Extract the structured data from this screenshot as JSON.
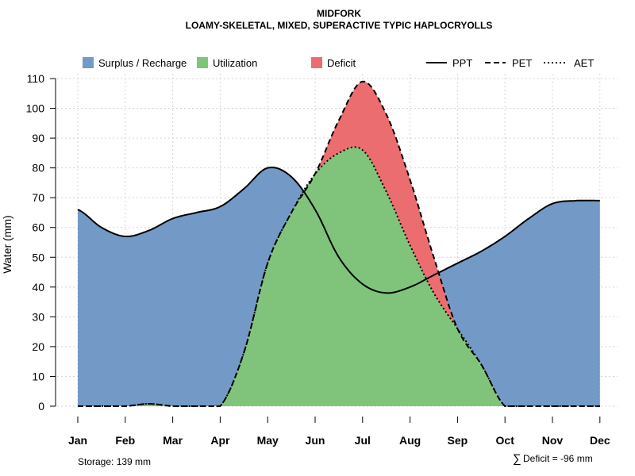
{
  "chart_data": {
    "type": "area",
    "title": "MIDFORK",
    "subtitle": "LOAMY-SKELETAL, MIXED, SUPERACTIVE TYPIC HAPLOCRYOLLS",
    "ylabel": "Water (mm)",
    "xlabel": "",
    "ylim": [
      0,
      110
    ],
    "yticks": [
      0,
      10,
      20,
      30,
      40,
      50,
      60,
      70,
      80,
      90,
      100,
      110
    ],
    "grid": true,
    "legend_position": "top",
    "categories": [
      "Jan",
      "Feb",
      "Mar",
      "Apr",
      "May",
      "Jun",
      "Jul",
      "Aug",
      "Sep",
      "Oct",
      "Nov",
      "Dec"
    ],
    "x": [
      1,
      1.5,
      2,
      2.5,
      3,
      3.5,
      4,
      4.5,
      5,
      5.5,
      6,
      6.5,
      7,
      7.5,
      8,
      8.5,
      9,
      9.5,
      10,
      10.5,
      11,
      11.5,
      12
    ],
    "series": [
      {
        "name": "PPT",
        "line": "solid",
        "values": [
          66,
          60,
          57,
          59,
          63,
          65,
          67,
          73,
          80,
          77,
          66,
          50,
          41,
          38,
          40,
          44,
          48,
          52,
          57,
          63,
          68,
          69,
          69
        ]
      },
      {
        "name": "PET",
        "line": "dashed",
        "values": [
          0,
          0,
          0,
          0.8,
          0,
          0,
          0,
          18,
          48,
          65,
          78,
          96,
          109,
          98,
          76,
          50,
          26,
          14,
          0,
          0,
          0,
          0,
          0
        ]
      },
      {
        "name": "AET",
        "line": "dotted",
        "values": [
          0,
          0,
          0,
          0.8,
          0,
          0,
          0,
          18,
          48,
          65,
          78,
          85,
          86,
          72,
          54,
          38,
          26,
          14,
          0,
          0,
          0,
          0,
          0
        ]
      }
    ],
    "fills": [
      {
        "name": "Surplus / Recharge",
        "color": "#7399C6"
      },
      {
        "name": "Utilization",
        "color": "#80C47C"
      },
      {
        "name": "Deficit",
        "color": "#EC6D6F"
      }
    ],
    "line_color": "#000000",
    "grid_color": "#D3D3D3",
    "footer_left": "Storage: 139 mm",
    "footer_right_symbol": "∑",
    "footer_right": "Deficit = -96 mm"
  }
}
